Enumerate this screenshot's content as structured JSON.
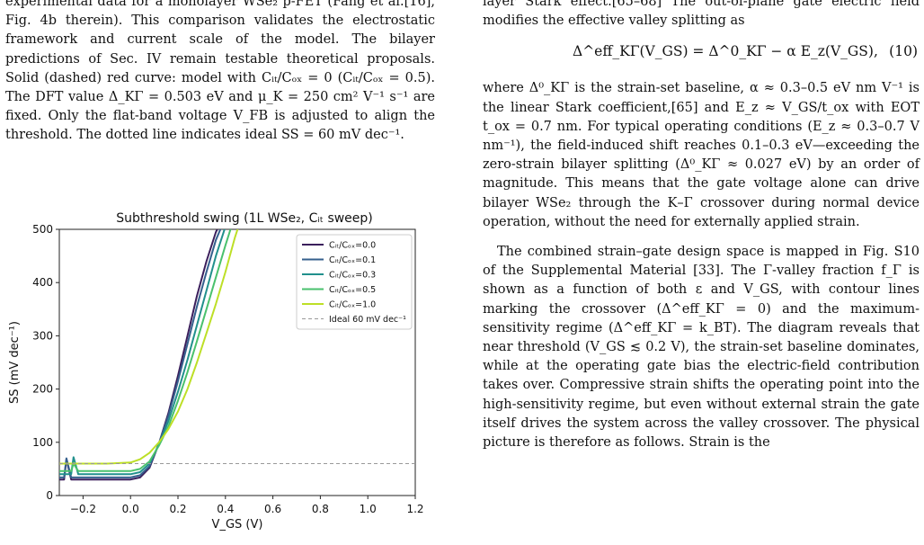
{
  "left_column": {
    "caption": "experimental data for a monolayer WSe₂ p-FET (Fang et al.[16], Fig. 4b therein). This comparison validates the electrostatic framework and current scale of the model. The bilayer predictions of Sec. IV remain testable theoretical proposals. Solid (dashed) red curve: model with Cᵢₜ/Cₒₓ = 0 (Cᵢₜ/Cₒₓ = 0.5). The DFT value Δ_KΓ = 0.503 eV and μ_K = 250 cm² V⁻¹ s⁻¹ are fixed. Only the flat-band voltage V_FB is adjusted to align the threshold. The dotted line indicates ideal SS = 60 mV dec⁻¹."
  },
  "right_column": {
    "intro_line": "layer Stark effect.[65–68] The out-of-plane gate electric field modifies the effective valley splitting as",
    "equation": {
      "text": "Δ^eff_KΓ(V_GS) = Δ^0_KΓ − α E_z(V_GS),",
      "number": "(10)"
    },
    "para1": "where Δ⁰_KΓ is the strain-set baseline, α ≈ 0.3–0.5 eV nm V⁻¹ is the linear Stark coefficient,[65] and E_z ≈ V_GS/t_ox with EOT t_ox = 0.7 nm. For typical operating conditions (E_z ≈ 0.3–0.7 V nm⁻¹), the field-induced shift reaches 0.1–0.3 eV—exceeding the zero-strain bilayer splitting (Δ⁰_KΓ ≈ 0.027 eV) by an order of magnitude. This means that the gate voltage alone can drive bilayer WSe₂ through the K–Γ crossover during normal device operation, without the need for externally applied strain.",
    "para2": "The combined strain–gate design space is mapped in Fig. S10 of the Supplemental Material [33]. The Γ-valley fraction f_Γ is shown as a function of both ε and V_GS, with contour lines marking the crossover (Δ^eff_KΓ = 0) and the maximum-sensitivity regime (Δ^eff_KΓ = k_BT). The diagram reveals that near threshold (V_GS ≲ 0.2 V), the strain-set baseline dominates, while at the operating gate bias the electric-field contribution takes over. Compressive strain shifts the operating point into the high-sensitivity regime, but even without external strain the gate itself drives the system across the valley crossover. The physical picture is therefore as follows. Strain is the"
  },
  "chart_data": {
    "type": "line",
    "title": "Subthreshold swing (1L WSe₂, Cᵢₜ sweep)",
    "xlabel": "V_GS (V)",
    "ylabel": "SS (mV dec⁻¹)",
    "xlim": [
      -0.3,
      1.2
    ],
    "ylim": [
      0,
      500
    ],
    "xticks": [
      -0.2,
      0.0,
      0.2,
      0.4,
      0.6,
      0.8,
      1.0,
      1.2
    ],
    "xtick_labels": [
      "−0.2",
      "0.0",
      "0.2",
      "0.4",
      "0.6",
      "0.8",
      "1.0",
      "1.2"
    ],
    "yticks": [
      0,
      100,
      200,
      300,
      400,
      500
    ],
    "ytick_labels": [
      "0",
      "100",
      "200",
      "300",
      "400",
      "500"
    ],
    "legend_position": "top-right",
    "series": [
      {
        "name": "Cᵢₜ/Cₒₓ=0.0",
        "color": "#3b1f5c",
        "x": [
          -0.3,
          -0.28,
          -0.27,
          -0.25,
          -0.2,
          -0.1,
          0.0,
          0.04,
          0.08,
          0.12,
          0.16,
          0.2,
          0.24,
          0.28,
          0.32,
          0.36,
          0.38
        ],
        "y": [
          30,
          30,
          68,
          30,
          30,
          30,
          30,
          34,
          52,
          98,
          155,
          225,
          300,
          375,
          440,
          495,
          512
        ]
      },
      {
        "name": "Cᵢₜ/Cₒₓ=0.1",
        "color": "#355f8d",
        "x": [
          -0.3,
          -0.28,
          -0.27,
          -0.25,
          -0.2,
          -0.1,
          0.0,
          0.04,
          0.08,
          0.12,
          0.16,
          0.2,
          0.24,
          0.28,
          0.32,
          0.36,
          0.39
        ],
        "y": [
          34,
          34,
          70,
          34,
          34,
          34,
          34,
          38,
          55,
          98,
          150,
          215,
          285,
          355,
          420,
          480,
          512
        ]
      },
      {
        "name": "Cᵢₜ/Cₒₓ=0.3",
        "color": "#21908c",
        "x": [
          -0.3,
          -0.25,
          -0.24,
          -0.22,
          -0.2,
          -0.1,
          0.0,
          0.04,
          0.08,
          0.12,
          0.16,
          0.2,
          0.24,
          0.28,
          0.32,
          0.36,
          0.4,
          0.41
        ],
        "y": [
          40,
          40,
          72,
          40,
          40,
          40,
          40,
          44,
          60,
          96,
          140,
          195,
          255,
          320,
          385,
          450,
          505,
          512
        ]
      },
      {
        "name": "Cᵢₜ/Cₒₓ=0.5",
        "color": "#4ac16d",
        "x": [
          -0.3,
          -0.25,
          -0.24,
          -0.22,
          -0.2,
          -0.1,
          0.0,
          0.04,
          0.08,
          0.12,
          0.16,
          0.2,
          0.24,
          0.28,
          0.32,
          0.36,
          0.4,
          0.43
        ],
        "y": [
          46,
          46,
          60,
          46,
          46,
          46,
          46,
          50,
          64,
          94,
          130,
          178,
          232,
          290,
          350,
          410,
          470,
          512
        ]
      },
      {
        "name": "Cᵢₜ/Cₒₓ=1.0",
        "color": "#bddf26",
        "x": [
          -0.3,
          -0.2,
          -0.1,
          0.0,
          0.04,
          0.08,
          0.12,
          0.16,
          0.2,
          0.24,
          0.28,
          0.32,
          0.36,
          0.4,
          0.44,
          0.46
        ],
        "y": [
          60,
          60,
          60,
          62,
          68,
          80,
          100,
          125,
          158,
          200,
          250,
          305,
          360,
          420,
          485,
          512
        ]
      },
      {
        "name": "Ideal 60 mV dec⁻¹",
        "color": "#999999",
        "dashed": true,
        "x": [
          -0.3,
          1.2
        ],
        "y": [
          60,
          60
        ]
      }
    ]
  }
}
